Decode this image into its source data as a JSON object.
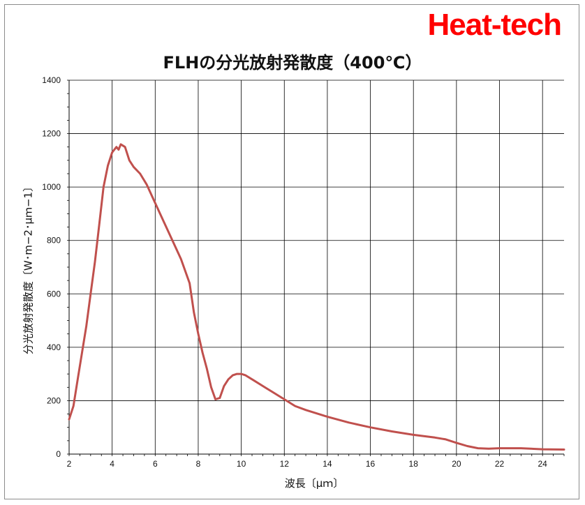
{
  "brand": "Heat-tech",
  "chart_data": {
    "type": "line",
    "title": "FLHの分光放射発散度（400℃）",
    "xlabel": "波長〔μｍ〕",
    "ylabel": "分光放射発散度〔W･m−2･μｍ−1〕",
    "xlim": [
      2,
      25
    ],
    "ylim": [
      0,
      1400
    ],
    "xticks": [
      2,
      4,
      6,
      8,
      10,
      12,
      14,
      16,
      18,
      20,
      22,
      24
    ],
    "yticks": [
      0,
      200,
      400,
      600,
      800,
      1000,
      1200,
      1400
    ],
    "grid": true,
    "legend": "none",
    "series": [
      {
        "color": "#c0504d",
        "x": [
          2.0,
          2.2,
          2.4,
          2.6,
          2.8,
          3.0,
          3.2,
          3.4,
          3.6,
          3.8,
          4.0,
          4.2,
          4.3,
          4.4,
          4.5,
          4.6,
          4.8,
          5.0,
          5.3,
          5.6,
          6.0,
          6.4,
          6.8,
          7.2,
          7.6,
          7.8,
          8.0,
          8.2,
          8.4,
          8.6,
          8.8,
          9.0,
          9.2,
          9.4,
          9.6,
          9.8,
          10.0,
          10.2,
          10.6,
          11.0,
          11.5,
          12.0,
          12.5,
          13.0,
          14.0,
          15.0,
          16.0,
          17.0,
          18.0,
          19.0,
          19.5,
          20.0,
          20.5,
          21.0,
          21.5,
          22.0,
          23.0,
          24.0,
          25.0
        ],
        "y": [
          130,
          180,
          280,
          380,
          480,
          600,
          720,
          860,
          1000,
          1080,
          1130,
          1150,
          1140,
          1160,
          1155,
          1150,
          1100,
          1075,
          1050,
          1010,
          940,
          870,
          800,
          730,
          640,
          530,
          450,
          380,
          320,
          250,
          205,
          210,
          255,
          280,
          295,
          300,
          300,
          295,
          275,
          255,
          230,
          205,
          180,
          165,
          140,
          118,
          100,
          85,
          72,
          62,
          55,
          42,
          30,
          22,
          20,
          22,
          22,
          18,
          17
        ]
      }
    ]
  }
}
